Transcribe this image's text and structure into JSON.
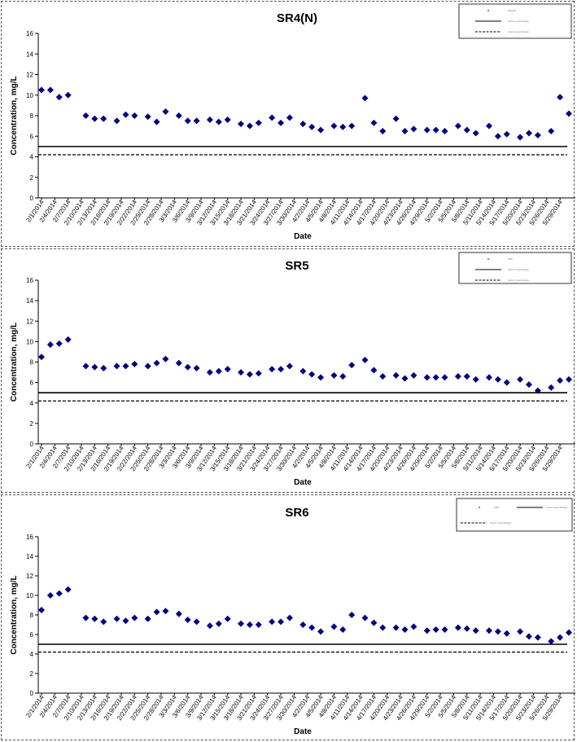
{
  "chart_data": [
    {
      "type": "scatter",
      "title": "SR4(N)",
      "xlabel": "Date",
      "ylabel": "Concentration, mg/L",
      "ylim": [
        0,
        16
      ],
      "yticks": [
        "0",
        "2",
        "4",
        "6",
        "8",
        "10",
        "12",
        "14",
        "16"
      ],
      "xlim": [
        "2/1/2014",
        "5/31/2014"
      ],
      "xtick_labels": [
        "2/1/2014",
        "2/4/2014",
        "2/7/2014",
        "2/10/2014",
        "2/13/2014",
        "2/16/2014",
        "2/19/2014",
        "2/22/2014",
        "2/25/2014",
        "2/28/2014",
        "3/3/2014",
        "3/6/2014",
        "3/9/2014",
        "3/12/2014",
        "3/15/2014",
        "3/18/2014",
        "3/21/2014",
        "3/24/2014",
        "3/27/2014",
        "3/30/2014",
        "4/2/2014",
        "4/5/2014",
        "4/8/2014",
        "4/11/2014",
        "4/14/2014",
        "4/17/2014",
        "4/20/2014",
        "4/23/2014",
        "4/26/2014",
        "4/29/2014",
        "5/2/2014",
        "5/5/2014",
        "5/8/2014",
        "5/11/2014",
        "5/14/2014",
        "5/17/2014",
        "5/20/2014",
        "5/23/2014",
        "5/26/2014",
        "5/29/2014"
      ],
      "legend_position": "top-right",
      "legend": [
        {
          "label": "SR4(N)",
          "style": "marker"
        },
        {
          "label": "Action Level Range",
          "style": "solid"
        },
        {
          "label": "Action Level Range",
          "style": "dashed"
        }
      ],
      "reference_lines": [
        {
          "y": 5.0,
          "style": "solid"
        },
        {
          "y": 4.2,
          "style": "dashed"
        }
      ],
      "series": [
        {
          "values": [
            [
              "2/1/2014",
              10.5
            ],
            [
              "2/3/2014",
              10.5
            ],
            [
              "2/5/2014",
              9.8
            ],
            [
              "2/7/2014",
              10.0
            ],
            [
              "2/11/2014",
              8.0
            ],
            [
              "2/13/2014",
              7.7
            ],
            [
              "2/15/2014",
              7.7
            ],
            [
              "2/18/2014",
              7.5
            ],
            [
              "2/20/2014",
              8.1
            ],
            [
              "2/22/2014",
              8.0
            ],
            [
              "2/25/2014",
              7.9
            ],
            [
              "2/27/2014",
              7.4
            ],
            [
              "3/1/2014",
              8.4
            ],
            [
              "3/4/2014",
              8.0
            ],
            [
              "3/6/2014",
              7.5
            ],
            [
              "3/8/2014",
              7.5
            ],
            [
              "3/11/2014",
              7.6
            ],
            [
              "3/13/2014",
              7.4
            ],
            [
              "3/15/2014",
              7.6
            ],
            [
              "3/18/2014",
              7.2
            ],
            [
              "3/20/2014",
              7.0
            ],
            [
              "3/22/2014",
              7.3
            ],
            [
              "3/25/2014",
              7.8
            ],
            [
              "3/27/2014",
              7.3
            ],
            [
              "3/29/2014",
              7.8
            ],
            [
              "4/1/2014",
              7.2
            ],
            [
              "4/3/2014",
              6.9
            ],
            [
              "4/5/2014",
              6.6
            ],
            [
              "4/8/2014",
              7.0
            ],
            [
              "4/10/2014",
              6.9
            ],
            [
              "4/12/2014",
              7.0
            ],
            [
              "4/15/2014",
              9.7
            ],
            [
              "4/17/2014",
              7.3
            ],
            [
              "4/19/2014",
              6.5
            ],
            [
              "4/22/2014",
              7.7
            ],
            [
              "4/24/2014",
              6.5
            ],
            [
              "4/26/2014",
              6.7
            ],
            [
              "4/29/2014",
              6.6
            ],
            [
              "5/1/2014",
              6.6
            ],
            [
              "5/3/2014",
              6.5
            ],
            [
              "5/6/2014",
              7.0
            ],
            [
              "5/8/2014",
              6.6
            ],
            [
              "5/10/2014",
              6.3
            ],
            [
              "5/13/2014",
              7.0
            ],
            [
              "5/15/2014",
              6.0
            ],
            [
              "5/17/2014",
              6.2
            ],
            [
              "5/20/2014",
              5.9
            ],
            [
              "5/22/2014",
              6.3
            ],
            [
              "5/24/2014",
              6.1
            ],
            [
              "5/27/2014",
              6.5
            ],
            [
              "5/29/2014",
              9.8
            ],
            [
              "5/31/2014",
              8.2
            ]
          ]
        }
      ]
    },
    {
      "type": "scatter",
      "title": "SR5",
      "xlabel": "Date",
      "ylabel": "Concentration, mg/L",
      "ylim": [
        0,
        16
      ],
      "yticks": [
        "0",
        "2",
        "4",
        "6",
        "8",
        "10",
        "12",
        "14",
        "16"
      ],
      "xlim": [
        "2/1/2014",
        "5/31/2014"
      ],
      "xtick_labels": [
        "2/1/2014",
        "2/4/2014",
        "2/7/2014",
        "2/10/2014",
        "2/13/2014",
        "2/16/2014",
        "2/19/2014",
        "2/22/2014",
        "2/25/2014",
        "2/28/2014",
        "3/3/2014",
        "3/6/2014",
        "3/9/2014",
        "3/12/2014",
        "3/15/2014",
        "3/18/2014",
        "3/21/2014",
        "3/24/2014",
        "3/27/2014",
        "3/30/2014",
        "4/2/2014",
        "4/5/2014",
        "4/8/2014",
        "4/11/2014",
        "4/14/2014",
        "4/17/2014",
        "4/20/2014",
        "4/23/2014",
        "4/26/2014",
        "4/29/2014",
        "5/2/2014",
        "5/5/2014",
        "5/8/2014",
        "5/11/2014",
        "5/14/2014",
        "5/17/2014",
        "5/20/2014",
        "5/23/2014",
        "5/26/2014",
        "5/29/2014"
      ],
      "legend_position": "top-right",
      "legend": [
        {
          "label": "SR5",
          "style": "marker"
        },
        {
          "label": "Action Level Range",
          "style": "solid"
        },
        {
          "label": "Action Level Range",
          "style": "dashed"
        }
      ],
      "reference_lines": [
        {
          "y": 5.0,
          "style": "solid"
        },
        {
          "y": 4.2,
          "style": "dashed"
        }
      ],
      "series": [
        {
          "values": [
            [
              "2/1/2014",
              8.5
            ],
            [
              "2/3/2014",
              9.7
            ],
            [
              "2/5/2014",
              9.8
            ],
            [
              "2/7/2014",
              10.2
            ],
            [
              "2/11/2014",
              7.6
            ],
            [
              "2/13/2014",
              7.5
            ],
            [
              "2/15/2014",
              7.4
            ],
            [
              "2/18/2014",
              7.6
            ],
            [
              "2/20/2014",
              7.6
            ],
            [
              "2/22/2014",
              7.8
            ],
            [
              "2/25/2014",
              7.6
            ],
            [
              "2/27/2014",
              7.9
            ],
            [
              "3/1/2014",
              8.3
            ],
            [
              "3/4/2014",
              7.9
            ],
            [
              "3/6/2014",
              7.5
            ],
            [
              "3/8/2014",
              7.4
            ],
            [
              "3/11/2014",
              7.0
            ],
            [
              "3/13/2014",
              7.1
            ],
            [
              "3/15/2014",
              7.3
            ],
            [
              "3/18/2014",
              7.0
            ],
            [
              "3/20/2014",
              6.8
            ],
            [
              "3/22/2014",
              6.9
            ],
            [
              "3/25/2014",
              7.3
            ],
            [
              "3/27/2014",
              7.3
            ],
            [
              "3/29/2014",
              7.6
            ],
            [
              "4/1/2014",
              7.1
            ],
            [
              "4/3/2014",
              6.8
            ],
            [
              "4/5/2014",
              6.5
            ],
            [
              "4/8/2014",
              6.7
            ],
            [
              "4/10/2014",
              6.6
            ],
            [
              "4/12/2014",
              7.7
            ],
            [
              "4/15/2014",
              8.2
            ],
            [
              "4/17/2014",
              7.2
            ],
            [
              "4/19/2014",
              6.6
            ],
            [
              "4/22/2014",
              6.7
            ],
            [
              "4/24/2014",
              6.4
            ],
            [
              "4/26/2014",
              6.7
            ],
            [
              "4/29/2014",
              6.5
            ],
            [
              "5/1/2014",
              6.5
            ],
            [
              "5/3/2014",
              6.5
            ],
            [
              "5/6/2014",
              6.6
            ],
            [
              "5/8/2014",
              6.6
            ],
            [
              "5/10/2014",
              6.3
            ],
            [
              "5/13/2014",
              6.5
            ],
            [
              "5/15/2014",
              6.3
            ],
            [
              "5/17/2014",
              6.0
            ],
            [
              "5/20/2014",
              6.3
            ],
            [
              "5/22/2014",
              5.8
            ],
            [
              "5/24/2014",
              5.2
            ],
            [
              "5/27/2014",
              5.5
            ],
            [
              "5/29/2014",
              6.2
            ],
            [
              "5/31/2014",
              6.3
            ]
          ]
        }
      ]
    },
    {
      "type": "scatter",
      "title": "SR6",
      "xlabel": "Date",
      "ylabel": "Concentration, mg/L",
      "ylim": [
        0,
        16
      ],
      "yticks": [
        "0",
        "2",
        "4",
        "6",
        "8",
        "10",
        "12",
        "14",
        "16"
      ],
      "xlim": [
        "2/1/2014",
        "5/31/2014"
      ],
      "xtick_labels": [
        "2/1/2014",
        "2/4/2014",
        "2/7/2014",
        "2/10/2014",
        "2/13/2014",
        "2/16/2014",
        "2/19/2014",
        "2/22/2014",
        "2/25/2014",
        "2/28/2014",
        "3/3/2014",
        "3/6/2014",
        "3/9/2014",
        "3/12/2014",
        "3/15/2014",
        "3/18/2014",
        "3/21/2014",
        "3/24/2014",
        "3/27/2014",
        "3/30/2014",
        "4/2/2014",
        "4/5/2014",
        "4/8/2014",
        "4/11/2014",
        "4/14/2014",
        "4/17/2014",
        "4/20/2014",
        "4/23/2014",
        "4/26/2014",
        "4/29/2014",
        "5/2/2014",
        "5/5/2014",
        "5/8/2014",
        "5/11/2014",
        "5/14/2014",
        "5/17/2014",
        "5/20/2014",
        "5/23/2014",
        "5/26/2014",
        "5/29/2014"
      ],
      "legend_position": "top-right",
      "legend": [
        {
          "label": "SR6",
          "style": "marker"
        },
        {
          "label": "Action Level Range",
          "style": "solid"
        },
        {
          "label": "Action Level Range",
          "style": "dashed"
        }
      ],
      "reference_lines": [
        {
          "y": 5.0,
          "style": "solid"
        },
        {
          "y": 4.2,
          "style": "dashed"
        }
      ],
      "series": [
        {
          "values": [
            [
              "2/1/2014",
              8.5
            ],
            [
              "2/3/2014",
              10.0
            ],
            [
              "2/5/2014",
              10.2
            ],
            [
              "2/7/2014",
              10.6
            ],
            [
              "2/11/2014",
              7.7
            ],
            [
              "2/13/2014",
              7.6
            ],
            [
              "2/15/2014",
              7.3
            ],
            [
              "2/18/2014",
              7.6
            ],
            [
              "2/20/2014",
              7.4
            ],
            [
              "2/22/2014",
              7.7
            ],
            [
              "2/25/2014",
              7.6
            ],
            [
              "2/27/2014",
              8.3
            ],
            [
              "3/1/2014",
              8.4
            ],
            [
              "3/4/2014",
              8.1
            ],
            [
              "3/6/2014",
              7.5
            ],
            [
              "3/8/2014",
              7.3
            ],
            [
              "3/11/2014",
              6.9
            ],
            [
              "3/13/2014",
              7.1
            ],
            [
              "3/15/2014",
              7.6
            ],
            [
              "3/18/2014",
              7.1
            ],
            [
              "3/20/2014",
              7.0
            ],
            [
              "3/22/2014",
              7.0
            ],
            [
              "3/25/2014",
              7.3
            ],
            [
              "3/27/2014",
              7.3
            ],
            [
              "3/29/2014",
              7.7
            ],
            [
              "4/1/2014",
              7.0
            ],
            [
              "4/3/2014",
              6.7
            ],
            [
              "4/5/2014",
              6.3
            ],
            [
              "4/8/2014",
              6.8
            ],
            [
              "4/10/2014",
              6.5
            ],
            [
              "4/12/2014",
              8.0
            ],
            [
              "4/15/2014",
              7.7
            ],
            [
              "4/17/2014",
              7.2
            ],
            [
              "4/19/2014",
              6.7
            ],
            [
              "4/22/2014",
              6.7
            ],
            [
              "4/24/2014",
              6.5
            ],
            [
              "4/26/2014",
              6.8
            ],
            [
              "4/29/2014",
              6.4
            ],
            [
              "5/1/2014",
              6.5
            ],
            [
              "5/3/2014",
              6.5
            ],
            [
              "5/6/2014",
              6.7
            ],
            [
              "5/8/2014",
              6.6
            ],
            [
              "5/10/2014",
              6.4
            ],
            [
              "5/13/2014",
              6.4
            ],
            [
              "5/15/2014",
              6.3
            ],
            [
              "5/17/2014",
              6.1
            ],
            [
              "5/20/2014",
              6.3
            ],
            [
              "5/22/2014",
              5.8
            ],
            [
              "5/24/2014",
              5.7
            ],
            [
              "5/27/2014",
              5.3
            ],
            [
              "5/29/2014",
              5.7
            ],
            [
              "5/31/2014",
              6.2
            ]
          ]
        }
      ]
    }
  ]
}
